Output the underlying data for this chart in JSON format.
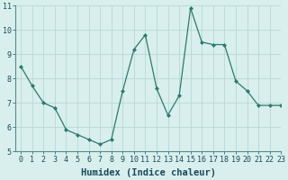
{
  "x": [
    0,
    1,
    2,
    3,
    4,
    5,
    6,
    7,
    8,
    9,
    10,
    11,
    12,
    13,
    14,
    15,
    16,
    17,
    18,
    19,
    20,
    21,
    22,
    23
  ],
  "y": [
    8.5,
    7.7,
    7.0,
    6.8,
    5.9,
    5.7,
    5.5,
    5.3,
    5.5,
    7.5,
    9.2,
    9.8,
    7.6,
    6.5,
    7.3,
    10.9,
    9.5,
    9.4,
    9.4,
    7.9,
    7.5,
    6.9,
    6.9,
    6.9
  ],
  "xlabel": "Humidex (Indice chaleur)",
  "ylim": [
    5,
    11
  ],
  "xlim": [
    -0.5,
    23
  ],
  "yticks": [
    5,
    6,
    7,
    8,
    9,
    10,
    11
  ],
  "xticks": [
    0,
    1,
    2,
    3,
    4,
    5,
    6,
    7,
    8,
    9,
    10,
    11,
    12,
    13,
    14,
    15,
    16,
    17,
    18,
    19,
    20,
    21,
    22,
    23
  ],
  "line_color": "#2d7a6e",
  "marker": "D",
  "marker_size": 2.0,
  "bg_color": "#d8efed",
  "grid_color": "#b8d8d5",
  "xlabel_fontsize": 7.5,
  "tick_fontsize": 6.0,
  "xlabel_color": "#1a4a5c",
  "tick_color": "#1a4a5c"
}
